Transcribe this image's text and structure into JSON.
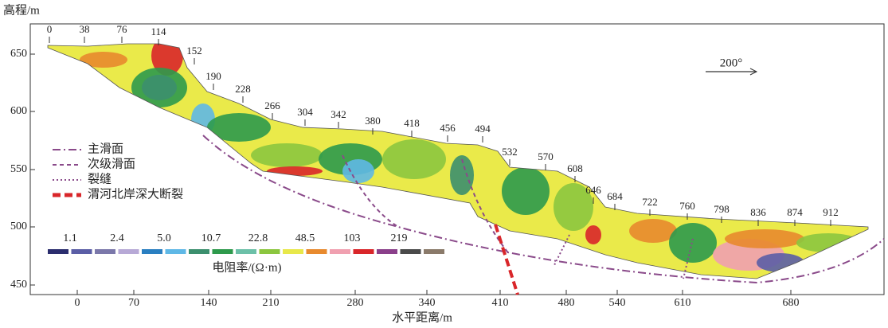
{
  "y_axis": {
    "label": "高程/m",
    "ticks": [
      650,
      600,
      550,
      500,
      450
    ]
  },
  "x_axis": {
    "label": "水平距离/m",
    "ticks": [
      0,
      70,
      140,
      210,
      280,
      340,
      410,
      480,
      540,
      610,
      680
    ]
  },
  "stations": [
    0,
    38,
    76,
    114,
    152,
    190,
    228,
    266,
    304,
    342,
    380,
    418,
    456,
    494,
    532,
    570,
    608,
    646,
    684,
    722,
    760,
    798,
    836,
    874,
    912
  ],
  "direction": "200°",
  "legend": [
    "主滑面",
    "次级滑面",
    "裂缝",
    "渭河北岸深大断裂"
  ],
  "scale": {
    "label": "电阻率/(Ω·m)",
    "values": [
      "1.1",
      "2.4",
      "5.0",
      "10.7",
      "22.8",
      "48.5",
      "103",
      "219"
    ]
  }
}
